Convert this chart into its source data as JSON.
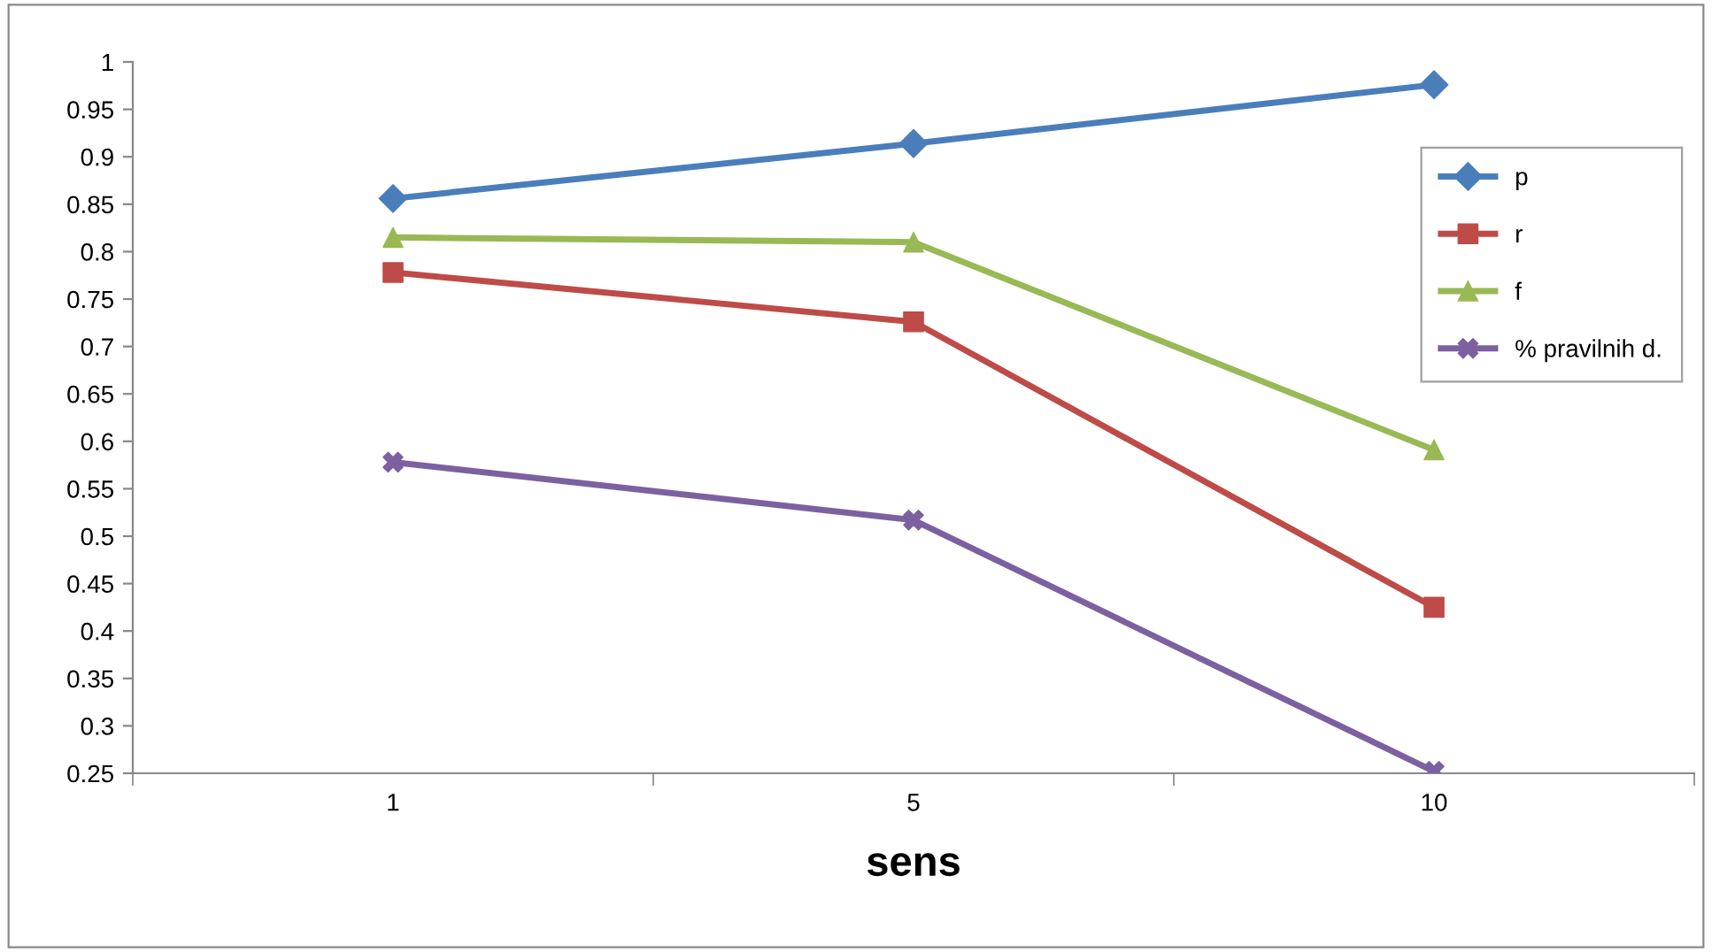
{
  "chart_data": {
    "type": "line",
    "xlabel": "sens",
    "categories": [
      "1",
      "5",
      "10"
    ],
    "series": [
      {
        "name": "p",
        "color": "#4a7ebb",
        "marker": "diamond",
        "values": [
          0.856,
          0.914,
          0.976
        ]
      },
      {
        "name": "r",
        "color": "#be4b48",
        "marker": "square",
        "values": [
          0.778,
          0.726,
          0.425
        ]
      },
      {
        "name": "f",
        "color": "#98b954",
        "marker": "triangle",
        "values": [
          0.815,
          0.81,
          0.591
        ]
      },
      {
        "name": "% pravilnih d.",
        "color": "#7d60a0",
        "marker": "cross",
        "values": [
          0.578,
          0.517,
          0.252
        ]
      }
    ],
    "ylim": [
      0.25,
      1
    ],
    "yticks": [
      0.25,
      0.3,
      0.35,
      0.4,
      0.45,
      0.5,
      0.55,
      0.6,
      0.65,
      0.7,
      0.75,
      0.8,
      0.85,
      0.9,
      0.95,
      1
    ],
    "grid": false,
    "legend": "right",
    "line_style": "solid"
  }
}
